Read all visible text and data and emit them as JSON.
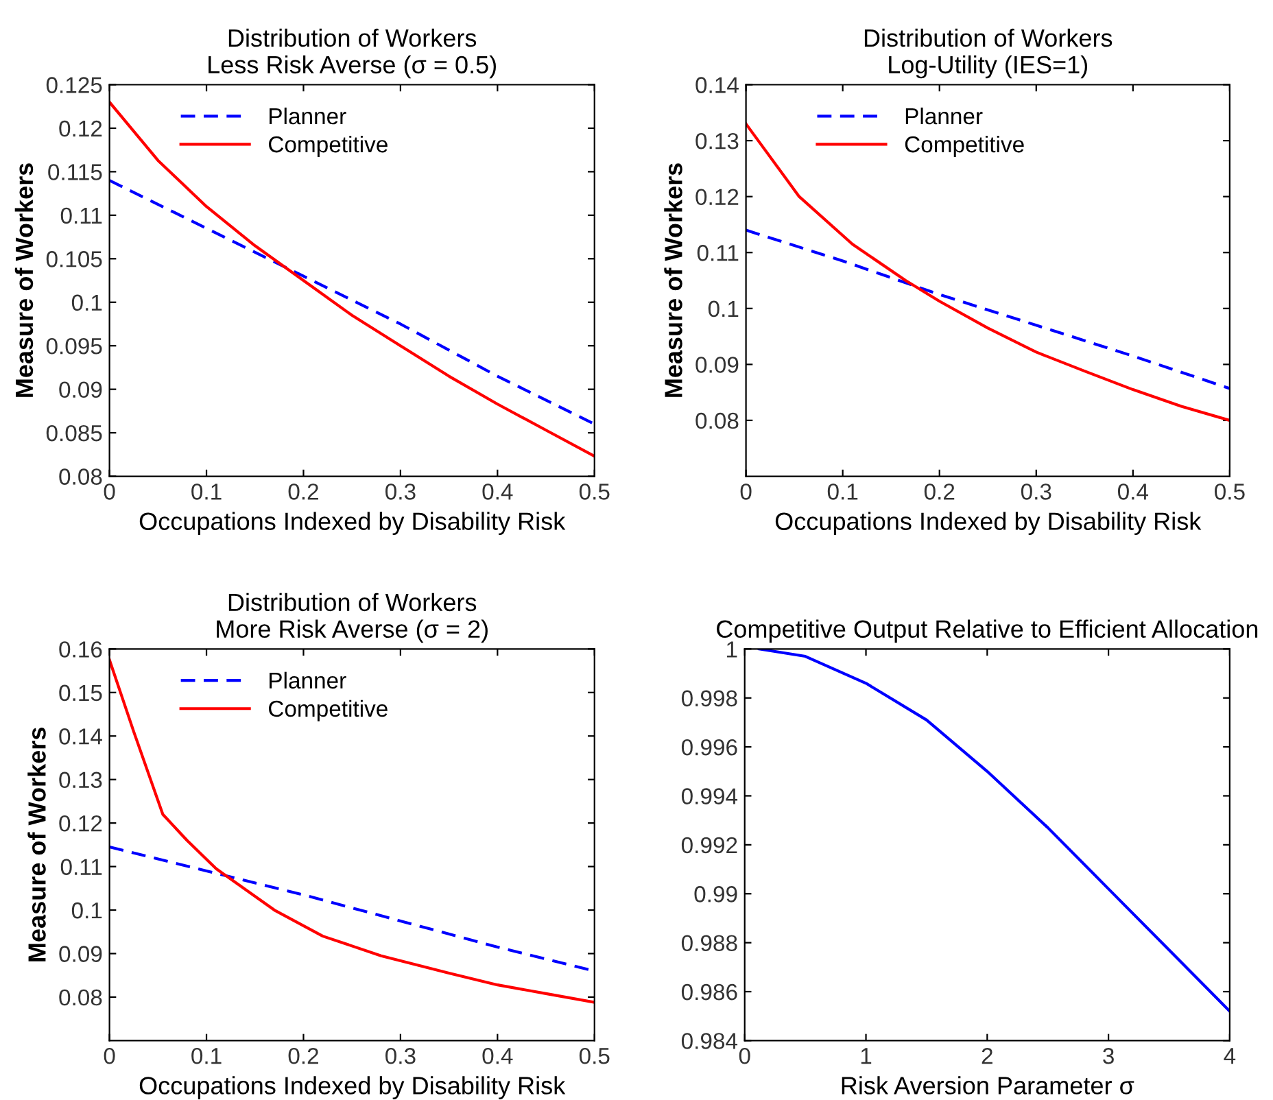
{
  "chart_data": [
    {
      "type": "line",
      "title": "Distribution of Workers",
      "subtitle": "Less Risk Averse (σ = 0.5)",
      "xlabel": "Occupations Indexed by Disability Risk",
      "ylabel": "Measure of Workers",
      "xlim": [
        0,
        0.5
      ],
      "xticks": [
        0,
        0.1,
        0.2,
        0.3,
        0.4,
        0.5
      ],
      "ylim": [
        0.08,
        0.125
      ],
      "yticks": [
        0.08,
        0.085,
        0.09,
        0.095,
        0.1,
        0.105,
        0.11,
        0.115,
        0.12,
        0.125
      ],
      "legend": "top left",
      "grid": false,
      "series": [
        {
          "name": "Planner",
          "color": "#0000ff",
          "line_style": "dashed",
          "x": [
            0,
            0.1,
            0.2,
            0.3,
            0.4,
            0.5
          ],
          "values": [
            0.114,
            0.1085,
            0.103,
            0.0975,
            0.0915,
            0.086
          ]
        },
        {
          "name": "Competitive",
          "color": "#ff0000",
          "line_style": "solid",
          "x": [
            0,
            0.05,
            0.1,
            0.15,
            0.2,
            0.25,
            0.3,
            0.35,
            0.4,
            0.45,
            0.5
          ],
          "values": [
            0.123,
            0.1163,
            0.111,
            0.1065,
            0.1025,
            0.0985,
            0.095,
            0.0915,
            0.0883,
            0.0853,
            0.0823
          ]
        }
      ]
    },
    {
      "type": "line",
      "title": "Distribution of Workers",
      "subtitle": "Log-Utility (IES=1)",
      "xlabel": "Occupations Indexed by Disability Risk",
      "ylabel": "Measure of Workers",
      "xlim": [
        0,
        0.5
      ],
      "xticks": [
        0,
        0.1,
        0.2,
        0.3,
        0.4,
        0.5
      ],
      "ylim": [
        0.07,
        0.14
      ],
      "yticks": [
        0.08,
        0.09,
        0.1,
        0.11,
        0.12,
        0.13,
        0.14
      ],
      "legend": "top left",
      "grid": false,
      "series": [
        {
          "name": "Planner",
          "color": "#0000ff",
          "line_style": "dashed",
          "x": [
            0,
            0.1,
            0.2,
            0.3,
            0.4,
            0.5
          ],
          "values": [
            0.114,
            0.1085,
            0.1025,
            0.097,
            0.0915,
            0.0857
          ]
        },
        {
          "name": "Competitive",
          "color": "#ff0000",
          "line_style": "solid",
          "x": [
            0,
            0.055,
            0.11,
            0.165,
            0.2,
            0.25,
            0.3,
            0.35,
            0.4,
            0.45,
            0.5
          ],
          "values": [
            0.133,
            0.12,
            0.1115,
            0.105,
            0.1013,
            0.0965,
            0.0922,
            0.0888,
            0.0855,
            0.0825,
            0.08
          ]
        }
      ]
    },
    {
      "type": "line",
      "title": "Distribution of Workers",
      "subtitle": "More Risk Averse (σ = 2)",
      "xlabel": "Occupations Indexed by Disability Risk",
      "ylabel": "Measure of Workers",
      "xlim": [
        0,
        0.5
      ],
      "xticks": [
        0,
        0.1,
        0.2,
        0.3,
        0.4,
        0.5
      ],
      "ylim": [
        0.07,
        0.16
      ],
      "yticks": [
        0.08,
        0.09,
        0.1,
        0.11,
        0.12,
        0.13,
        0.14,
        0.15,
        0.16
      ],
      "legend": "top left",
      "grid": false,
      "series": [
        {
          "name": "Planner",
          "color": "#0000ff",
          "line_style": "dashed",
          "x": [
            0,
            0.1,
            0.2,
            0.3,
            0.4,
            0.5
          ],
          "values": [
            0.1145,
            0.109,
            0.1035,
            0.0975,
            0.0915,
            0.086
          ]
        },
        {
          "name": "Competitive",
          "color": "#ff0000",
          "line_style": "solid",
          "x": [
            0,
            0.025,
            0.055,
            0.08,
            0.11,
            0.17,
            0.22,
            0.28,
            0.35,
            0.4,
            0.45,
            0.5
          ],
          "values": [
            0.1575,
            0.141,
            0.122,
            0.116,
            0.1095,
            0.1,
            0.094,
            0.0895,
            0.0855,
            0.0828,
            0.0808,
            0.0788
          ]
        }
      ]
    },
    {
      "type": "line",
      "title": "Competitive Output Relative to Efficient Allocation",
      "xlabel": "Risk Aversion Parameter σ",
      "xlim": [
        0,
        4
      ],
      "xticks": [
        0,
        1,
        2,
        3,
        4
      ],
      "ylim": [
        0.984,
        1
      ],
      "yticks": [
        0.984,
        0.986,
        0.988,
        0.99,
        0.992,
        0.994,
        0.996,
        0.998,
        1
      ],
      "grid": false,
      "series": [
        {
          "color": "#0000ff",
          "line_style": "solid",
          "x": [
            0.12,
            0.5,
            1,
            1.5,
            2,
            2.5,
            3,
            3.5,
            4
          ],
          "values": [
            1.0,
            0.9997,
            0.9986,
            0.9971,
            0.995,
            0.9927,
            0.9902,
            0.9877,
            0.9852
          ]
        }
      ]
    }
  ]
}
